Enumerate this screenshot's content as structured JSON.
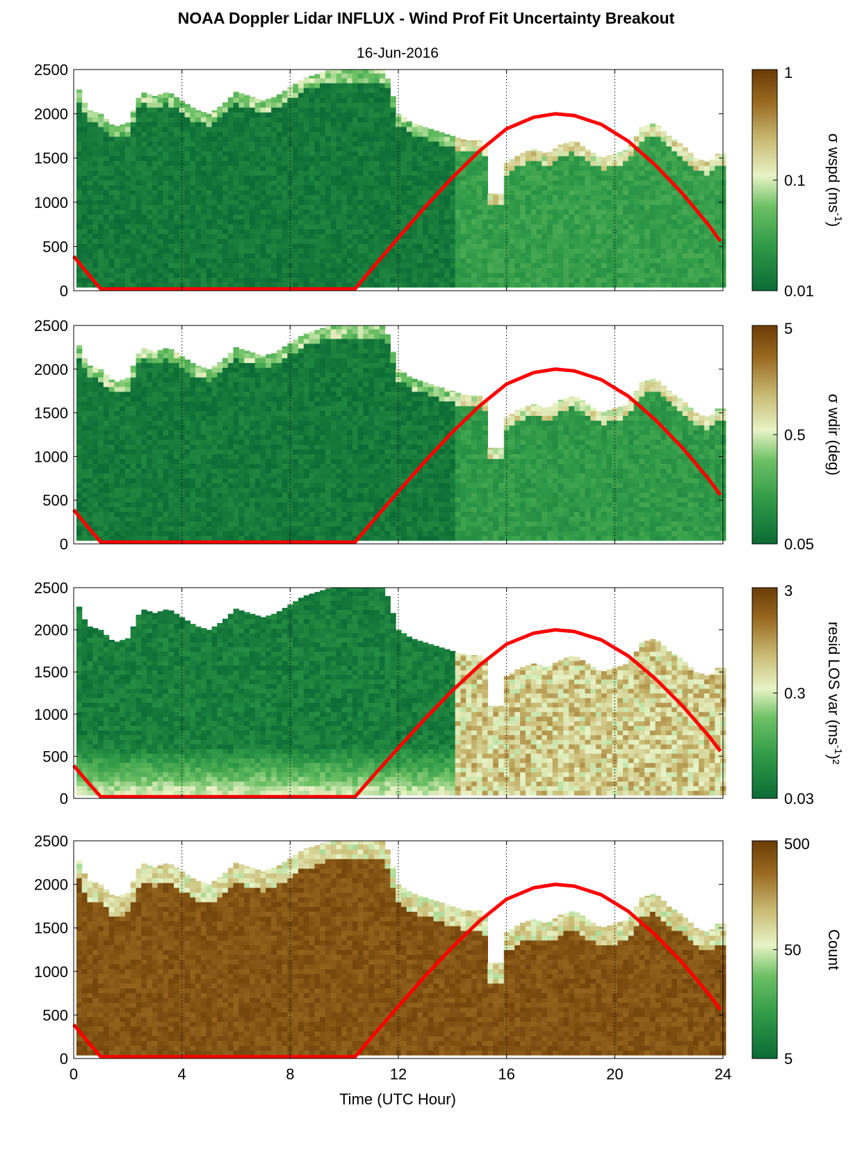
{
  "chart_data": {
    "title": "NOAA Doppler Lidar INFLUX - Wind Prof Fit Uncertainty Breakout",
    "subtitle": "16-Jun-2016",
    "xlabel": "Time (UTC Hour)",
    "xlim": [
      0,
      24
    ],
    "xticks": [
      0,
      4,
      8,
      12,
      16,
      20,
      24
    ],
    "ylim": [
      0,
      2500
    ],
    "yticks": [
      0,
      500,
      1000,
      1500,
      2000,
      2500
    ],
    "vertical_dotted_grid_at": [
      4,
      8,
      12,
      16,
      20
    ],
    "colors": {
      "green_low": "#0b6b35",
      "green_mid": "#2f9a48",
      "green_light": "#6cc064",
      "pale": "#e8f3c6",
      "tan": "#c9bb74",
      "brown": "#9a6a22",
      "dark_brown": "#6b3c05",
      "overlay_line": "#ff0000"
    },
    "overlay_curve": {
      "color": "#ff0000",
      "x": [
        0,
        0.5,
        1.0,
        10.4,
        11.0,
        12.0,
        13.0,
        14.0,
        15.0,
        16.0,
        17.0,
        17.8,
        18.5,
        19.5,
        20.5,
        21.5,
        22.5,
        23.5,
        23.9
      ],
      "y": [
        390,
        200,
        20,
        20,
        240,
        600,
        950,
        1280,
        1580,
        1830,
        1960,
        2000,
        1980,
        1880,
        1690,
        1420,
        1100,
        730,
        560
      ]
    },
    "echo_top": {
      "x": [
        0.1,
        0.5,
        1.0,
        1.5,
        2.0,
        2.5,
        3.0,
        3.5,
        4.0,
        4.5,
        5.0,
        5.5,
        6.0,
        6.5,
        7.0,
        7.5,
        8.0,
        8.5,
        9.0,
        9.5,
        10.0,
        10.5,
        11.0,
        11.5,
        12.0,
        12.5,
        13.0,
        13.5,
        14.0,
        14.5,
        15.0,
        15.3,
        15.4,
        15.9,
        16.0,
        16.5,
        17.0,
        17.5,
        18.0,
        18.5,
        19.0,
        19.5,
        20.0,
        20.5,
        21.0,
        21.5,
        22.0,
        22.5,
        23.0,
        23.5,
        23.8
      ],
      "y": [
        2350,
        2050,
        2000,
        1850,
        1900,
        2250,
        2200,
        2250,
        2150,
        2050,
        2000,
        2100,
        2250,
        2200,
        2150,
        2200,
        2300,
        2400,
        2450,
        2500,
        2500,
        2500,
        2500,
        2500,
        2000,
        1900,
        1850,
        1800,
        1750,
        1700,
        1700,
        1600,
        1100,
        1100,
        1450,
        1550,
        1600,
        1550,
        1650,
        1700,
        1600,
        1500,
        1550,
        1600,
        1850,
        1900,
        1750,
        1650,
        1500,
        1450,
        1550
      ]
    },
    "panels": [
      {
        "name": "sigma-wspd",
        "type": "heatmap",
        "colorbar_label_main": "σ wspd (ms",
        "colorbar_label_sup": "-1",
        "colorbar_label_tail": ")",
        "colorbar_ticks": [
          "1",
          "0.1",
          "0.01"
        ],
        "colorbar_scale": "log",
        "field": [
          {
            "x0": 0,
            "x1": 14,
            "value": 0.012,
            "note_level": 0.06
          },
          {
            "x0": 14,
            "x1": 24,
            "value": 0.02,
            "note_level": 0.22
          }
        ]
      },
      {
        "name": "sigma-wdir",
        "type": "heatmap",
        "colorbar_label_main": "σ wdir (deg)",
        "colorbar_label_sup": "",
        "colorbar_label_tail": "",
        "colorbar_ticks": [
          "5",
          "0.5",
          "0.05"
        ],
        "colorbar_scale": "log",
        "field": [
          {
            "x0": 0,
            "x1": 14,
            "value": 0.06,
            "note_level": 0.06
          },
          {
            "x0": 14,
            "x1": 24,
            "value": 0.12,
            "note_level": 0.2
          }
        ]
      },
      {
        "name": "resid-los-var",
        "type": "heatmap",
        "colorbar_label_main": "resid LOS var (ms",
        "colorbar_label_sup": "-1",
        "colorbar_label_tail": ")²",
        "colorbar_ticks": [
          "3",
          "0.3",
          "0.03"
        ],
        "colorbar_scale": "log",
        "field": [
          {
            "x0": 0,
            "x1": 14,
            "value": 0.05,
            "note_level": 0.15
          },
          {
            "x0": 14,
            "x1": 24,
            "value": 1.0,
            "note_level": 0.72
          }
        ]
      },
      {
        "name": "count",
        "type": "heatmap",
        "colorbar_label_main": "Count",
        "colorbar_label_sup": "",
        "colorbar_label_tail": "",
        "colorbar_ticks": [
          "500",
          "50",
          "5"
        ],
        "colorbar_scale": "log",
        "field": [
          {
            "x0": 0,
            "x1": 24,
            "value": 400,
            "note_level": 0.95
          }
        ]
      }
    ]
  }
}
